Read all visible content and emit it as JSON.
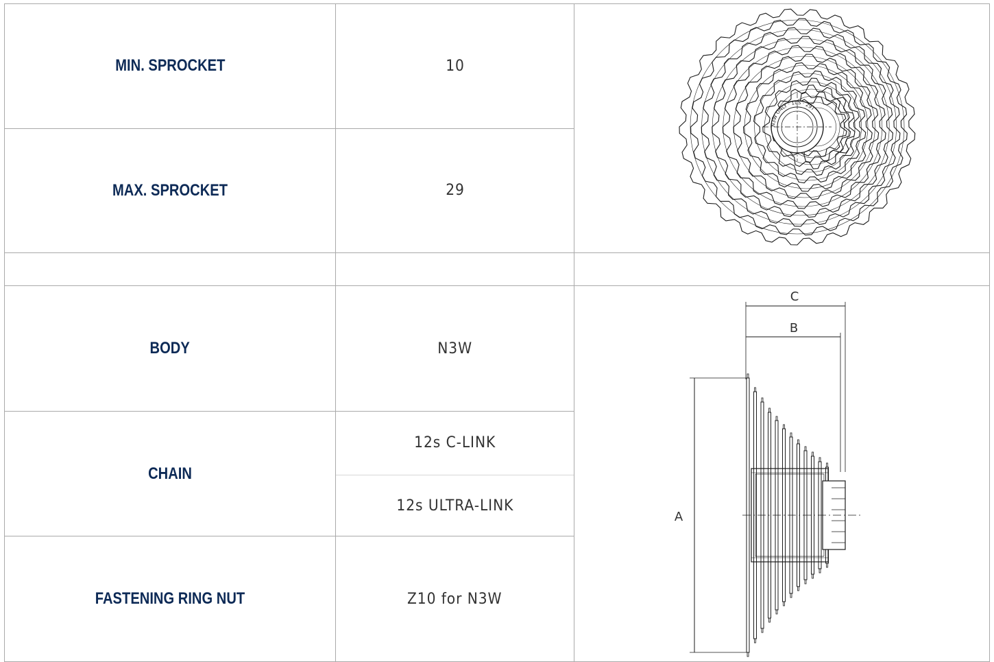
{
  "rows": {
    "min_sprocket": {
      "label": "MIN. SPROCKET",
      "value": "10"
    },
    "max_sprocket": {
      "label": "MAX. SPROCKET",
      "value": "29"
    },
    "body": {
      "label": "BODY",
      "value": "N3W"
    },
    "chain": {
      "label": "CHAIN",
      "values": [
        "12s C-LINK",
        "12s ULTRA-LINK"
      ]
    },
    "fastening_ring_nut": {
      "label": "FASTENING RING NUT",
      "value": "Z10 for N3W"
    }
  },
  "diagram": {
    "dimension_labels": {
      "a": "A",
      "b": "B",
      "c": "C"
    },
    "cassette_face_text": "N3W ONLY · 10S · 29T"
  },
  "colors": {
    "label_text": "#0d2a56",
    "value_text": "#333333",
    "border": "#a9a9a9",
    "drawing_line": "#1a1a1a"
  }
}
